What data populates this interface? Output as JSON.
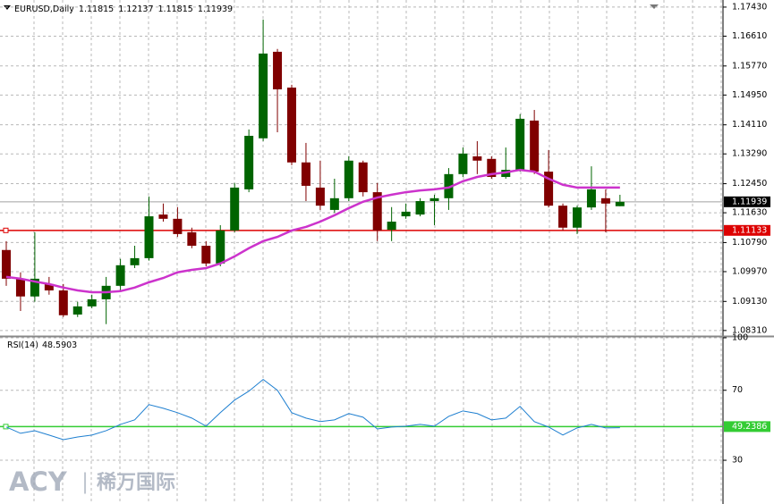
{
  "chart_data": [
    {
      "type": "candlestick",
      "title": "EURUSD,Daily",
      "open": [
        1.1058,
        1.0977,
        1.0927,
        1.0962,
        1.0944,
        1.0876,
        1.0899,
        1.0919,
        1.0957,
        1.1015,
        1.1035,
        1.1158,
        1.1146,
        1.1108,
        1.107,
        1.102,
        1.1113,
        1.1229,
        1.1373,
        1.1617,
        1.1516,
        1.1305,
        1.1234,
        1.1171,
        1.1204,
        1.1305,
        1.1221,
        1.1115,
        1.1153,
        1.1158,
        1.1196,
        1.1204,
        1.1272,
        1.1322,
        1.1315,
        1.1264,
        1.1284,
        1.1423,
        1.1279,
        1.1183,
        1.1121,
        1.1178,
        1.1204,
        1.11815
      ],
      "high": [
        1.1083,
        1.0995,
        1.1108,
        1.0982,
        1.0962,
        1.0912,
        1.0932,
        1.0982,
        1.1033,
        1.107,
        1.1209,
        1.1189,
        1.1179,
        1.1121,
        1.1083,
        1.1128,
        1.1247,
        1.1398,
        1.1708,
        1.1625,
        1.1524,
        1.136,
        1.131,
        1.1259,
        1.1322,
        1.131,
        1.1247,
        1.1179,
        1.1189,
        1.1204,
        1.1214,
        1.1289,
        1.1347,
        1.1365,
        1.1322,
        1.1347,
        1.1441,
        1.1453,
        1.134,
        1.1189,
        1.1183,
        1.1294,
        1.1229,
        1.12137
      ],
      "low": [
        1.0957,
        1.0886,
        1.0912,
        1.0932,
        1.0869,
        1.0869,
        1.0894,
        1.0849,
        1.0944,
        1.1007,
        1.1028,
        1.1138,
        1.1095,
        1.1063,
        1.1012,
        1.1012,
        1.1108,
        1.1221,
        1.1365,
        1.139,
        1.1297,
        1.1196,
        1.1171,
        1.1163,
        1.1196,
        1.1209,
        1.1083,
        1.1083,
        1.1146,
        1.1153,
        1.1128,
        1.1171,
        1.1264,
        1.1272,
        1.1259,
        1.1259,
        1.1279,
        1.1272,
        1.1178,
        1.1113,
        1.1103,
        1.1171,
        1.1108,
        1.11815
      ],
      "close": [
        1.0977,
        1.0927,
        1.0977,
        1.0944,
        1.0874,
        1.0899,
        1.0919,
        1.0957,
        1.1015,
        1.1035,
        1.1153,
        1.1146,
        1.1103,
        1.107,
        1.102,
        1.1113,
        1.1234,
        1.138,
        1.1612,
        1.1511,
        1.1305,
        1.1239,
        1.1183,
        1.1204,
        1.131,
        1.1221,
        1.1113,
        1.1138,
        1.1166,
        1.1196,
        1.1204,
        1.1272,
        1.133,
        1.131,
        1.1264,
        1.1284,
        1.1428,
        1.1279,
        1.1183,
        1.1121,
        1.1178,
        1.1229,
        1.1189,
        1.11939
      ],
      "colors": {
        "up": "#006400",
        "down": "#800000"
      },
      "ma": {
        "color": "#cc33cc",
        "values": [
          1.0982,
          1.0977,
          1.0969,
          1.0962,
          1.0952,
          1.0944,
          1.0939,
          1.0939,
          1.0942,
          1.0952,
          1.0967,
          1.0979,
          1.0995,
          1.1002,
          1.1007,
          1.102,
          1.104,
          1.1063,
          1.1083,
          1.1095,
          1.1113,
          1.1123,
          1.1138,
          1.1156,
          1.1176,
          1.1194,
          1.1206,
          1.1214,
          1.1221,
          1.1226,
          1.1229,
          1.1234,
          1.1252,
          1.1264,
          1.1272,
          1.1277,
          1.1284,
          1.1279,
          1.1259,
          1.1242,
          1.1234,
          1.1234,
          1.1234,
          1.1234
        ]
      },
      "hlines": [
        {
          "value": 1.11133,
          "color": "#dd0000"
        }
      ],
      "current_color": "#a0a0a0",
      "ylim": [
        1.0818,
        1.1763
      ],
      "yticks": [
        {
          "value": 1.1743,
          "label": "1.17430"
        },
        {
          "value": 1.1661,
          "label": "1.16610"
        },
        {
          "value": 1.1577,
          "label": "1.15770"
        },
        {
          "value": 1.1495,
          "label": "1.14950"
        },
        {
          "value": 1.1411,
          "label": "1.14110"
        },
        {
          "value": 1.1329,
          "label": "1.13290"
        },
        {
          "value": 1.1245,
          "label": "1.12450"
        },
        {
          "value": 1.1163,
          "label": "1.11630"
        },
        {
          "value": 1.1079,
          "label": "1.10790"
        },
        {
          "value": 1.0997,
          "label": "1.09970"
        },
        {
          "value": 1.0913,
          "label": "1.09130"
        },
        {
          "value": 1.0831,
          "label": "1.08310"
        }
      ],
      "grid": true
    },
    {
      "type": "line",
      "title": "RSI(14)",
      "color": "#1e7fd0",
      "values": [
        49.0,
        45.4,
        46.9,
        44.4,
        41.8,
        43.3,
        44.4,
        46.9,
        50.5,
        53.1,
        61.8,
        59.7,
        57.2,
        54.1,
        49.5,
        57.2,
        64.4,
        69.5,
        76.2,
        70.0,
        57.2,
        54.1,
        52.1,
        53.1,
        56.7,
        54.6,
        47.9,
        49.0,
        49.5,
        50.5,
        49.5,
        55.1,
        58.2,
        56.7,
        53.1,
        54.1,
        60.8,
        52.1,
        49.0,
        44.4,
        48.5,
        50.5,
        48.5,
        48.5903
      ],
      "levels": [
        {
          "value": 49.2386,
          "color": "#33cc33"
        }
      ],
      "ylim": [
        5,
        100
      ],
      "yticks": [
        100,
        70,
        30
      ],
      "grid": true
    }
  ],
  "watermark": {
    "brand": "ACY",
    "separator": "|",
    "name": "稀万国际"
  }
}
